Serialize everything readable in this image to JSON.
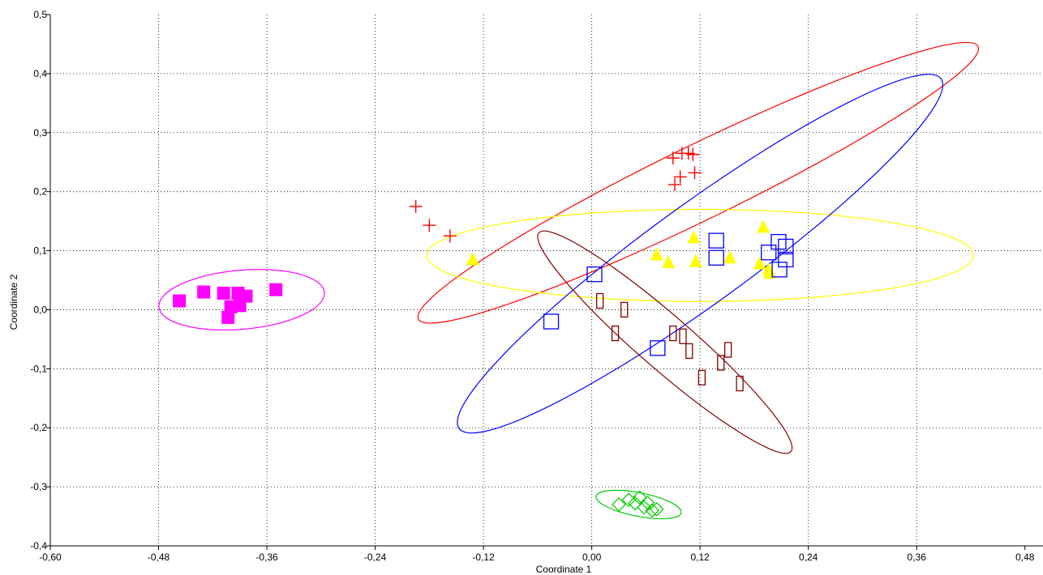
{
  "chart_data": {
    "type": "scatter",
    "xlabel": "Coordinate 1",
    "ylabel": "Coordinate 2",
    "xlim": [
      -0.6,
      0.5
    ],
    "ylim": [
      -0.4,
      0.5
    ],
    "x_ticks": [
      -0.6,
      -0.48,
      -0.36,
      -0.24,
      -0.12,
      0.0,
      0.12,
      0.24,
      0.36,
      0.48
    ],
    "x_tick_labels": [
      "-0,60",
      "-0,48",
      "-0,36",
      "-0,24",
      "-0,12",
      "0,00",
      "0,12",
      "0,24",
      "0,36",
      "0,48"
    ],
    "y_ticks": [
      -0.4,
      -0.3,
      -0.2,
      -0.1,
      0.0,
      0.1,
      0.2,
      0.3,
      0.4,
      0.5
    ],
    "y_tick_labels": [
      "-0,4",
      "-0,3",
      "-0,2",
      "-0,1",
      "0,0",
      "0,1",
      "0,2",
      "0,3",
      "0,4",
      "0,5"
    ],
    "x_grid": [
      -0.48,
      -0.36,
      -0.24,
      -0.12,
      0.0,
      0.12,
      0.24,
      0.36
    ],
    "y_grid": [
      -0.3,
      -0.2,
      -0.1,
      0.0,
      0.1,
      0.2,
      0.3,
      0.4
    ],
    "grid": true,
    "series": [
      {
        "marker": "filled-square",
        "color": "#ff00ff",
        "points": [
          [
            -0.457,
            0.015
          ],
          [
            -0.43,
            0.03
          ],
          [
            -0.408,
            0.028
          ],
          [
            -0.392,
            0.028
          ],
          [
            -0.383,
            0.023
          ],
          [
            -0.403,
            -0.013
          ],
          [
            -0.39,
            0.007
          ],
          [
            -0.4,
            0.005
          ],
          [
            -0.35,
            0.034
          ]
        ],
        "ellipse": {
          "cx": -0.388,
          "cy": 0.017,
          "rx": 0.092,
          "ry": 0.05,
          "angle": 5
        }
      },
      {
        "marker": "plus",
        "color": "#ff0000",
        "points": [
          [
            -0.195,
            0.175
          ],
          [
            -0.18,
            0.143
          ],
          [
            -0.157,
            0.125
          ],
          [
            0.09,
            0.257
          ],
          [
            0.1,
            0.265
          ],
          [
            0.107,
            0.265
          ],
          [
            0.112,
            0.263
          ],
          [
            0.098,
            0.225
          ],
          [
            0.092,
            0.212
          ],
          [
            0.114,
            0.232
          ]
        ],
        "ellipse": {
          "cx": 0.118,
          "cy": 0.215,
          "rx": 0.345,
          "ry": 0.063,
          "angle": 26
        }
      },
      {
        "marker": "filled-triangle",
        "color": "#ffff00",
        "points": [
          [
            -0.132,
            0.085
          ],
          [
            0.072,
            0.093
          ],
          [
            0.085,
            0.08
          ],
          [
            0.113,
            0.122
          ],
          [
            0.115,
            0.082
          ],
          [
            0.153,
            0.088
          ],
          [
            0.19,
            0.14
          ],
          [
            0.186,
            0.078
          ],
          [
            0.196,
            0.068
          ],
          [
            0.197,
            0.062
          ]
        ],
        "ellipse": {
          "cx": 0.12,
          "cy": 0.092,
          "rx": 0.303,
          "ry": 0.078,
          "angle": 0
        }
      },
      {
        "marker": "open-square",
        "color": "#0000ff",
        "points": [
          [
            -0.045,
            -0.02
          ],
          [
            0.003,
            0.06
          ],
          [
            0.073,
            -0.065
          ],
          [
            0.138,
            0.117
          ],
          [
            0.138,
            0.088
          ],
          [
            0.196,
            0.097
          ],
          [
            0.207,
            0.115
          ],
          [
            0.215,
            0.107
          ],
          [
            0.215,
            0.085
          ],
          [
            0.208,
            0.068
          ]
        ],
        "ellipse": {
          "cx": 0.12,
          "cy": 0.095,
          "rx": 0.33,
          "ry": 0.084,
          "angle": 36
        }
      },
      {
        "marker": "open-rect",
        "color": "#800000",
        "points": [
          [
            0.009,
            0.015
          ],
          [
            0.036,
            0.0
          ],
          [
            0.026,
            -0.04
          ],
          [
            0.09,
            -0.04
          ],
          [
            0.101,
            -0.045
          ],
          [
            0.108,
            -0.07
          ],
          [
            0.122,
            -0.115
          ],
          [
            0.143,
            -0.09
          ],
          [
            0.151,
            -0.068
          ],
          [
            0.164,
            -0.125
          ]
        ],
        "ellipse": {
          "cx": 0.081,
          "cy": -0.055,
          "rx": 0.185,
          "ry": 0.045,
          "angle": -41
        }
      },
      {
        "marker": "open-diamond",
        "color": "#00cc00",
        "points": [
          [
            0.03,
            -0.33
          ],
          [
            0.041,
            -0.322
          ],
          [
            0.048,
            -0.328
          ],
          [
            0.053,
            -0.318
          ],
          [
            0.058,
            -0.335
          ],
          [
            0.062,
            -0.327
          ],
          [
            0.067,
            -0.34
          ],
          [
            0.072,
            -0.338
          ]
        ],
        "ellipse": {
          "cx": 0.052,
          "cy": -0.33,
          "rx": 0.048,
          "ry": 0.02,
          "angle": -11
        }
      }
    ]
  }
}
